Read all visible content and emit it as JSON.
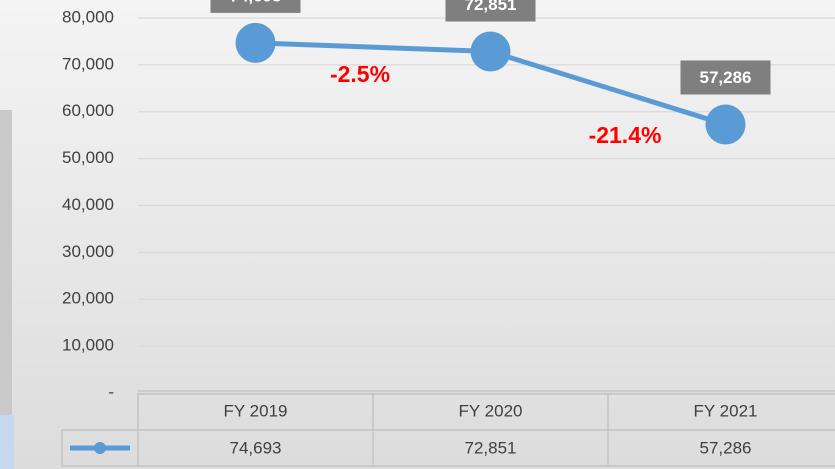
{
  "chart_data": {
    "type": "line",
    "categories": [
      "FY 2019",
      "FY 2020",
      "FY 2021"
    ],
    "values": [
      74693,
      72851,
      57286
    ],
    "value_labels": [
      "74,693",
      "72,851",
      "57,286"
    ],
    "color": "#5b9bd5",
    "ylim": [
      0,
      80000
    ],
    "yticks": [
      {
        "value": 0,
        "label": "-"
      },
      {
        "value": 10000,
        "label": "10,000"
      },
      {
        "value": 20000,
        "label": "20,000"
      },
      {
        "value": 30000,
        "label": "30,000"
      },
      {
        "value": 40000,
        "label": "40,000"
      },
      {
        "value": 50000,
        "label": "50,000"
      },
      {
        "value": 60000,
        "label": "60,000"
      },
      {
        "value": 70000,
        "label": "70,000"
      },
      {
        "value": 80000,
        "label": "80,000"
      }
    ],
    "grid": true,
    "annotations": [
      "-2.5%",
      "-21.4%"
    ]
  }
}
